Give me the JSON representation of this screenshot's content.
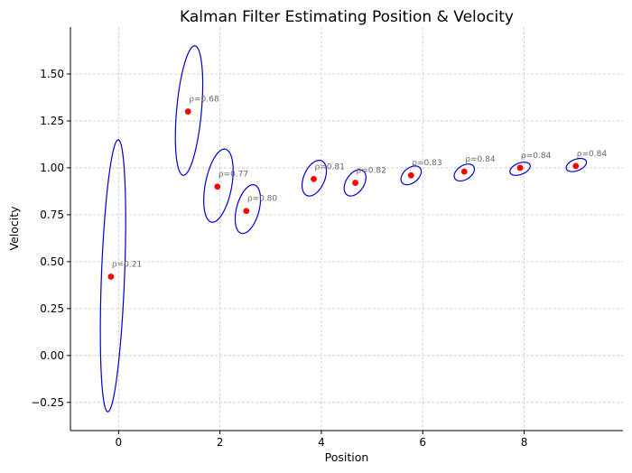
{
  "chart_data": {
    "type": "scatter",
    "title": "Kalman Filter Estimating Position & Velocity",
    "xlabel": "Position",
    "ylabel": "Velocity",
    "xlim": [
      -0.95,
      9.95
    ],
    "ylim": [
      -0.4,
      1.75
    ],
    "xticks": [
      0,
      2,
      4,
      6,
      8
    ],
    "yticks": [
      -0.25,
      0.0,
      0.25,
      0.5,
      0.75,
      1.0,
      1.25,
      1.5
    ],
    "xtick_labels": [
      "0",
      "2",
      "4",
      "6",
      "8"
    ],
    "ytick_labels": [
      "−0.25",
      "0.00",
      "0.25",
      "0.50",
      "0.75",
      "1.00",
      "1.25",
      "1.50"
    ],
    "grid": true,
    "point_color": "#ff0000",
    "ellipse_color": "#0000cc",
    "annotation_color": "#666666",
    "estimates": [
      {
        "x": -0.15,
        "y": 0.42,
        "rho": "ρ=0.21",
        "ellipse": {
          "xmin": -0.36,
          "xmax": 0.14,
          "ymin": -0.3,
          "ymax": 1.15
        }
      },
      {
        "x": 1.37,
        "y": 1.3,
        "rho": "ρ=0.68",
        "ellipse": {
          "xmin": 1.12,
          "xmax": 1.66,
          "ymin": 0.96,
          "ymax": 1.65
        }
      },
      {
        "x": 1.95,
        "y": 0.9,
        "rho": "ρ=0.77",
        "ellipse": {
          "xmin": 1.68,
          "xmax": 2.26,
          "ymin": 0.71,
          "ymax": 1.1
        }
      },
      {
        "x": 2.52,
        "y": 0.77,
        "rho": "ρ=0.80",
        "ellipse": {
          "xmin": 2.3,
          "xmax": 2.8,
          "ymin": 0.65,
          "ymax": 0.91
        }
      },
      {
        "x": 3.85,
        "y": 0.94,
        "rho": "ρ=0.81",
        "ellipse": {
          "xmin": 3.62,
          "xmax": 4.1,
          "ymin": 0.85,
          "ymax": 1.04
        }
      },
      {
        "x": 4.67,
        "y": 0.92,
        "rho": "ρ=0.82",
        "ellipse": {
          "xmin": 4.45,
          "xmax": 4.88,
          "ymin": 0.85,
          "ymax": 0.99
        }
      },
      {
        "x": 5.77,
        "y": 0.96,
        "rho": "ρ=0.83",
        "ellipse": {
          "xmin": 5.57,
          "xmax": 5.97,
          "ymin": 0.91,
          "ymax": 1.01
        }
      },
      {
        "x": 6.82,
        "y": 0.98,
        "rho": "ρ=0.84",
        "ellipse": {
          "xmin": 6.62,
          "xmax": 7.02,
          "ymin": 0.93,
          "ymax": 1.02
        }
      },
      {
        "x": 7.92,
        "y": 1.0,
        "rho": "ρ=0.84",
        "ellipse": {
          "xmin": 7.72,
          "xmax": 8.12,
          "ymin": 0.96,
          "ymax": 1.03
        }
      },
      {
        "x": 9.02,
        "y": 1.01,
        "rho": "ρ=0.84",
        "ellipse": {
          "xmin": 8.83,
          "xmax": 9.23,
          "ymin": 0.98,
          "ymax": 1.05
        }
      }
    ]
  }
}
